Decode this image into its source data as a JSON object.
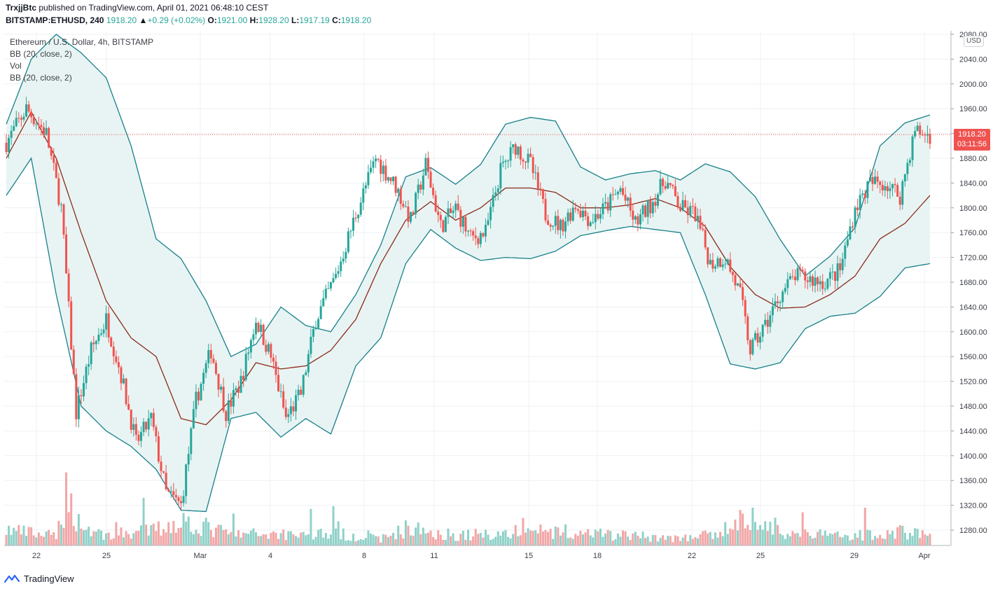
{
  "header": {
    "publisher": "TrxjjBtc",
    "published_text": " published on TradingView.com, April 01, 2021 06:48:10 CEST",
    "symbol": "BITSTAMP:ETHUSD, 240",
    "last_price": "1918.20",
    "change": "+0.29 (+0.02%)",
    "o_label": "O:",
    "o_value": "1921.00",
    "h_label": "H:",
    "h_value": "1928.20",
    "l_label": "L:",
    "l_value": "1917.19",
    "c_label": "C:",
    "c_value": "1918.20"
  },
  "legend": {
    "line1": "Ethereum / U.S. Dollar, 4h, BITSTAMP",
    "line2": "BB (20, close, 2)",
    "line3": "Vol",
    "line4": "BB (20, close, 2)"
  },
  "price_tag": {
    "price": "1918.20",
    "countdown": "03:11:56"
  },
  "currency": "USD",
  "brand": "TradingView",
  "colors": {
    "up": "#26a69a",
    "down": "#ef5350",
    "up_vol": "#8fd1c8",
    "down_vol": "#f2a6a6",
    "band": "#17808a",
    "basis": "#8b2a1a",
    "band_fill": "#e8f4f3"
  },
  "chart_data": {
    "type": "candlestick",
    "y_axis_ticks": [
      "2080.00",
      "2040.00",
      "2000.00",
      "1960.00",
      "1920.00",
      "1880.00",
      "1840.00",
      "1800.00",
      "1760.00",
      "1720.00",
      "1680.00",
      "1640.00",
      "1600.00",
      "1560.00",
      "1520.00",
      "1480.00",
      "1440.00",
      "1400.00",
      "1360.00",
      "1320.00",
      "1280.00"
    ],
    "y_range": [
      1262,
      2082
    ],
    "x_axis_labels": [
      "22",
      "25",
      "Mar",
      "4",
      "8",
      "11",
      "15",
      "18",
      "22",
      "25",
      "29",
      "Apr"
    ],
    "bb_upper_key": [
      [
        0,
        1935
      ],
      [
        10,
        2040
      ],
      [
        20,
        2080
      ],
      [
        30,
        2050
      ],
      [
        40,
        2010
      ],
      [
        50,
        1900
      ],
      [
        60,
        1750
      ],
      [
        70,
        1718
      ],
      [
        80,
        1650
      ],
      [
        90,
        1560
      ],
      [
        100,
        1580
      ],
      [
        110,
        1640
      ],
      [
        120,
        1610
      ],
      [
        130,
        1600
      ],
      [
        140,
        1660
      ],
      [
        150,
        1740
      ],
      [
        160,
        1850
      ],
      [
        170,
        1865
      ],
      [
        180,
        1838
      ],
      [
        190,
        1870
      ],
      [
        200,
        1935
      ],
      [
        210,
        1946
      ],
      [
        220,
        1940
      ],
      [
        230,
        1866
      ],
      [
        240,
        1845
      ],
      [
        250,
        1855
      ],
      [
        260,
        1860
      ],
      [
        270,
        1845
      ],
      [
        280,
        1871
      ],
      [
        290,
        1858
      ],
      [
        300,
        1818
      ],
      [
        310,
        1749
      ],
      [
        320,
        1690
      ],
      [
        330,
        1722
      ],
      [
        340,
        1768
      ],
      [
        350,
        1900
      ],
      [
        360,
        1937
      ],
      [
        370,
        1950
      ]
    ],
    "bb_lower_key": [
      [
        0,
        1820
      ],
      [
        10,
        1880
      ],
      [
        20,
        1660
      ],
      [
        30,
        1480
      ],
      [
        40,
        1440
      ],
      [
        50,
        1415
      ],
      [
        60,
        1378
      ],
      [
        70,
        1312
      ],
      [
        80,
        1310
      ],
      [
        90,
        1460
      ],
      [
        100,
        1470
      ],
      [
        110,
        1430
      ],
      [
        120,
        1460
      ],
      [
        130,
        1435
      ],
      [
        140,
        1545
      ],
      [
        150,
        1590
      ],
      [
        160,
        1710
      ],
      [
        170,
        1765
      ],
      [
        180,
        1735
      ],
      [
        190,
        1715
      ],
      [
        200,
        1720
      ],
      [
        210,
        1718
      ],
      [
        220,
        1730
      ],
      [
        230,
        1755
      ],
      [
        240,
        1763
      ],
      [
        250,
        1770
      ],
      [
        260,
        1765
      ],
      [
        270,
        1760
      ],
      [
        280,
        1660
      ],
      [
        290,
        1548
      ],
      [
        300,
        1540
      ],
      [
        310,
        1550
      ],
      [
        320,
        1605
      ],
      [
        330,
        1625
      ],
      [
        340,
        1630
      ],
      [
        350,
        1657
      ],
      [
        360,
        1703
      ],
      [
        370,
        1710
      ]
    ],
    "bb_basis_key": [
      [
        0,
        1880
      ],
      [
        10,
        1955
      ],
      [
        20,
        1880
      ],
      [
        30,
        1760
      ],
      [
        40,
        1650
      ],
      [
        50,
        1590
      ],
      [
        60,
        1560
      ],
      [
        70,
        1460
      ],
      [
        80,
        1450
      ],
      [
        90,
        1490
      ],
      [
        100,
        1550
      ],
      [
        110,
        1540
      ],
      [
        120,
        1545
      ],
      [
        130,
        1570
      ],
      [
        140,
        1620
      ],
      [
        150,
        1710
      ],
      [
        160,
        1780
      ],
      [
        170,
        1810
      ],
      [
        180,
        1780
      ],
      [
        190,
        1800
      ],
      [
        200,
        1832
      ],
      [
        210,
        1832
      ],
      [
        220,
        1825
      ],
      [
        230,
        1800
      ],
      [
        240,
        1800
      ],
      [
        250,
        1805
      ],
      [
        260,
        1815
      ],
      [
        270,
        1800
      ],
      [
        280,
        1770
      ],
      [
        290,
        1705
      ],
      [
        300,
        1660
      ],
      [
        310,
        1638
      ],
      [
        320,
        1640
      ],
      [
        330,
        1660
      ],
      [
        340,
        1690
      ],
      [
        350,
        1750
      ],
      [
        360,
        1775
      ],
      [
        370,
        1820
      ]
    ],
    "close_key": [
      [
        0,
        1905
      ],
      [
        8,
        1960
      ],
      [
        16,
        1920
      ],
      [
        22,
        1800
      ],
      [
        28,
        1470
      ],
      [
        34,
        1570
      ],
      [
        40,
        1620
      ],
      [
        46,
        1530
      ],
      [
        52,
        1420
      ],
      [
        58,
        1460
      ],
      [
        64,
        1340
      ],
      [
        70,
        1320
      ],
      [
        76,
        1490
      ],
      [
        82,
        1570
      ],
      [
        88,
        1470
      ],
      [
        94,
        1520
      ],
      [
        100,
        1620
      ],
      [
        106,
        1560
      ],
      [
        112,
        1460
      ],
      [
        118,
        1500
      ],
      [
        124,
        1620
      ],
      [
        132,
        1690
      ],
      [
        140,
        1790
      ],
      [
        148,
        1880
      ],
      [
        156,
        1835
      ],
      [
        162,
        1780
      ],
      [
        168,
        1870
      ],
      [
        174,
        1770
      ],
      [
        180,
        1800
      ],
      [
        186,
        1750
      ],
      [
        192,
        1760
      ],
      [
        198,
        1860
      ],
      [
        204,
        1900
      ],
      [
        210,
        1870
      ],
      [
        216,
        1790
      ],
      [
        222,
        1770
      ],
      [
        228,
        1805
      ],
      [
        234,
        1780
      ],
      [
        240,
        1800
      ],
      [
        246,
        1830
      ],
      [
        252,
        1775
      ],
      [
        258,
        1805
      ],
      [
        264,
        1845
      ],
      [
        270,
        1800
      ],
      [
        276,
        1790
      ],
      [
        282,
        1710
      ],
      [
        288,
        1720
      ],
      [
        294,
        1660
      ],
      [
        298,
        1570
      ],
      [
        304,
        1610
      ],
      [
        310,
        1660
      ],
      [
        316,
        1690
      ],
      [
        322,
        1685
      ],
      [
        328,
        1680
      ],
      [
        334,
        1700
      ],
      [
        340,
        1800
      ],
      [
        346,
        1840
      ],
      [
        352,
        1840
      ],
      [
        358,
        1820
      ],
      [
        364,
        1925
      ],
      [
        368,
        1918
      ]
    ],
    "volume_key": [
      [
        0,
        28
      ],
      [
        20,
        16
      ],
      [
        24,
        90
      ],
      [
        30,
        34
      ],
      [
        40,
        18
      ],
      [
        60,
        28
      ],
      [
        70,
        45
      ],
      [
        90,
        20
      ],
      [
        130,
        22
      ],
      [
        150,
        12
      ],
      [
        160,
        30
      ],
      [
        170,
        25
      ],
      [
        180,
        18
      ],
      [
        200,
        22
      ],
      [
        215,
        28
      ],
      [
        225,
        16
      ],
      [
        235,
        20
      ],
      [
        250,
        18
      ],
      [
        270,
        12
      ],
      [
        285,
        20
      ],
      [
        296,
        50
      ],
      [
        310,
        25
      ],
      [
        330,
        18
      ],
      [
        345,
        20
      ],
      [
        360,
        25
      ],
      [
        370,
        18
      ]
    ],
    "candle_count": 371
  }
}
